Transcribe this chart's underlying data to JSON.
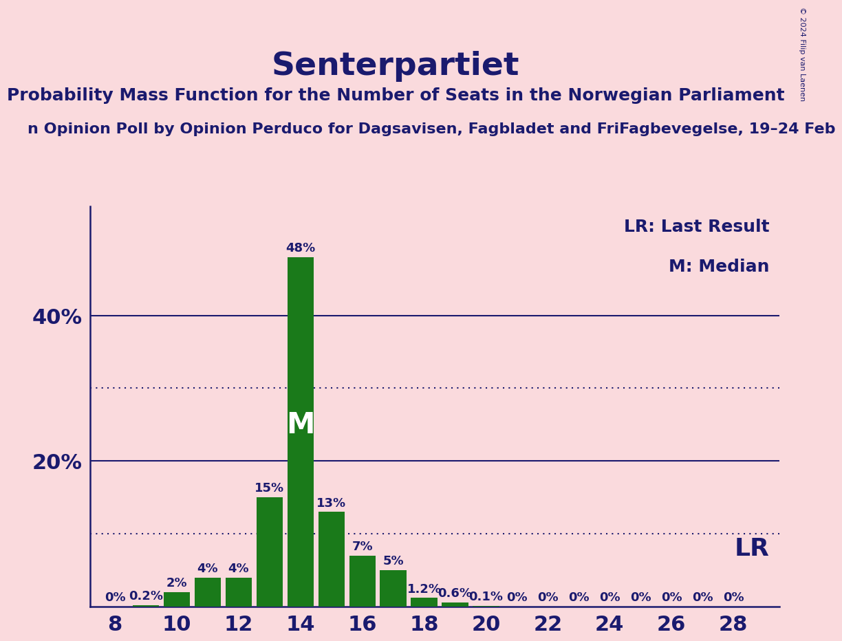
{
  "title": "Senterpartiet",
  "subtitle": "Probability Mass Function for the Number of Seats in the Norwegian Parliament",
  "source_line": "n Opinion Poll by Opinion Perduco for Dagsavisen, Fagbladet and FriFagbevegelse, 19–24 Feb",
  "copyright": "© 2024 Filip van Laenen",
  "legend_lr": "LR: Last Result",
  "legend_m": "M: Median",
  "lr_label": "LR",
  "median_seat": 14,
  "lr_seat": 28,
  "seats": [
    8,
    9,
    10,
    11,
    12,
    13,
    14,
    15,
    16,
    17,
    18,
    19,
    20,
    21,
    22,
    23,
    24,
    25,
    26,
    27,
    28
  ],
  "probabilities": [
    0.0,
    0.2,
    2.0,
    4.0,
    4.0,
    15.0,
    48.0,
    13.0,
    7.0,
    5.0,
    1.2,
    0.6,
    0.1,
    0.0,
    0.0,
    0.0,
    0.0,
    0.0,
    0.0,
    0.0,
    0.0
  ],
  "bar_color": "#1a7a1a",
  "background_color": "#fadadd",
  "text_color": "#1a1a6e",
  "grid_solid_color": "#1a1a6e",
  "grid_dotted_color": "#1a1a6e",
  "ytick_solid": [
    20,
    40
  ],
  "ytick_dotted": [
    10,
    30
  ],
  "ylim": [
    0,
    55
  ],
  "xlabel_ticks": [
    8,
    10,
    12,
    14,
    16,
    18,
    20,
    22,
    24,
    26,
    28
  ],
  "title_fontsize": 34,
  "subtitle_fontsize": 18,
  "source_fontsize": 16,
  "bar_label_fontsize": 13,
  "axis_label_fontsize": 22,
  "legend_fontsize": 18,
  "lr_fontsize": 26,
  "median_m_fontsize": 30
}
